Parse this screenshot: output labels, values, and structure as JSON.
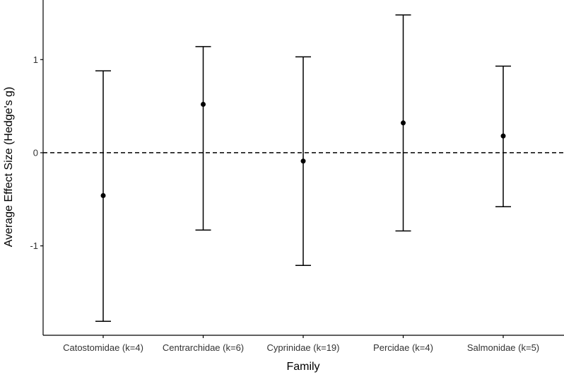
{
  "chart_data": {
    "type": "errorbar",
    "title": "",
    "xlabel": "Family",
    "ylabel": "Average Effect Size (Hedge's g)",
    "categories": [
      "Catostomidae (k=4)",
      "Centrarchidae (k=6)",
      "Cyprinidae (k=19)",
      "Percidae (k=4)",
      "Salmonidae (k=5)"
    ],
    "estimate": [
      -0.46,
      0.52,
      -0.09,
      0.32,
      0.18
    ],
    "lower": [
      -1.81,
      -0.83,
      -1.21,
      -0.84,
      -0.58
    ],
    "upper": [
      0.88,
      1.14,
      1.03,
      1.48,
      0.93
    ],
    "yticks": [
      -1,
      0,
      1
    ],
    "ytick_labels": [
      "-1",
      "0",
      "1"
    ],
    "ylim": [
      -1.96,
      1.64
    ],
    "reference_line": {
      "y": 0,
      "style": "dashed"
    },
    "grid": false,
    "legend": "none",
    "colors": {
      "mark": "#000000",
      "axis": "#000000",
      "text": "#333333"
    }
  }
}
